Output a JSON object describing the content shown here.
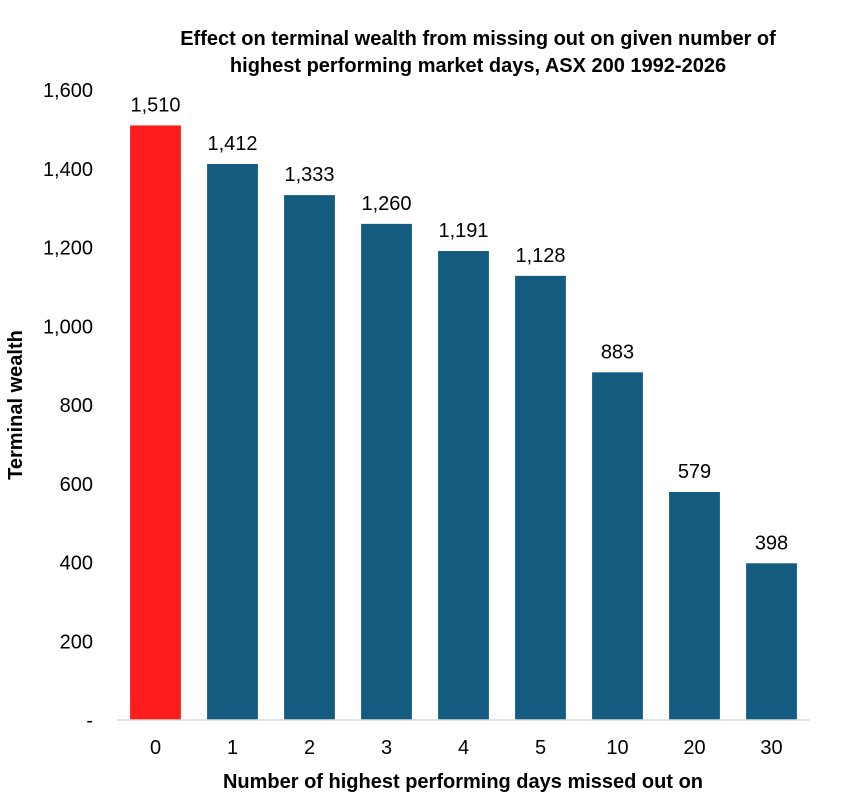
{
  "chart_data": {
    "type": "bar",
    "title_lines": [
      "Effect on terminal wealth from missing out on given number of",
      "highest performing market days, ASX 200 1992-2026"
    ],
    "xlabel": "Number of highest performing days missed out on",
    "ylabel": "Terminal wealth",
    "categories": [
      "0",
      "1",
      "2",
      "3",
      "4",
      "5",
      "10",
      "20",
      "30"
    ],
    "values": [
      1510,
      1412,
      1333,
      1260,
      1191,
      1128,
      883,
      579,
      398
    ],
    "data_labels": [
      "1,510",
      "1,412",
      "1,333",
      "1,260",
      "1,191",
      "1,128",
      "883",
      "579",
      "398"
    ],
    "ylim": [
      0,
      1600
    ],
    "yticks": [
      0,
      200,
      400,
      600,
      800,
      1000,
      1200,
      1400,
      1600
    ],
    "ytick_labels": [
      "-",
      "200",
      "400",
      "600",
      "800",
      "1,000",
      "1,200",
      "1,400",
      "1,600"
    ],
    "grid": false,
    "legend": "none",
    "colors": {
      "highlight": "#FF1C1C",
      "bar": "#135B7F",
      "axis": "#D9D9D9"
    }
  }
}
